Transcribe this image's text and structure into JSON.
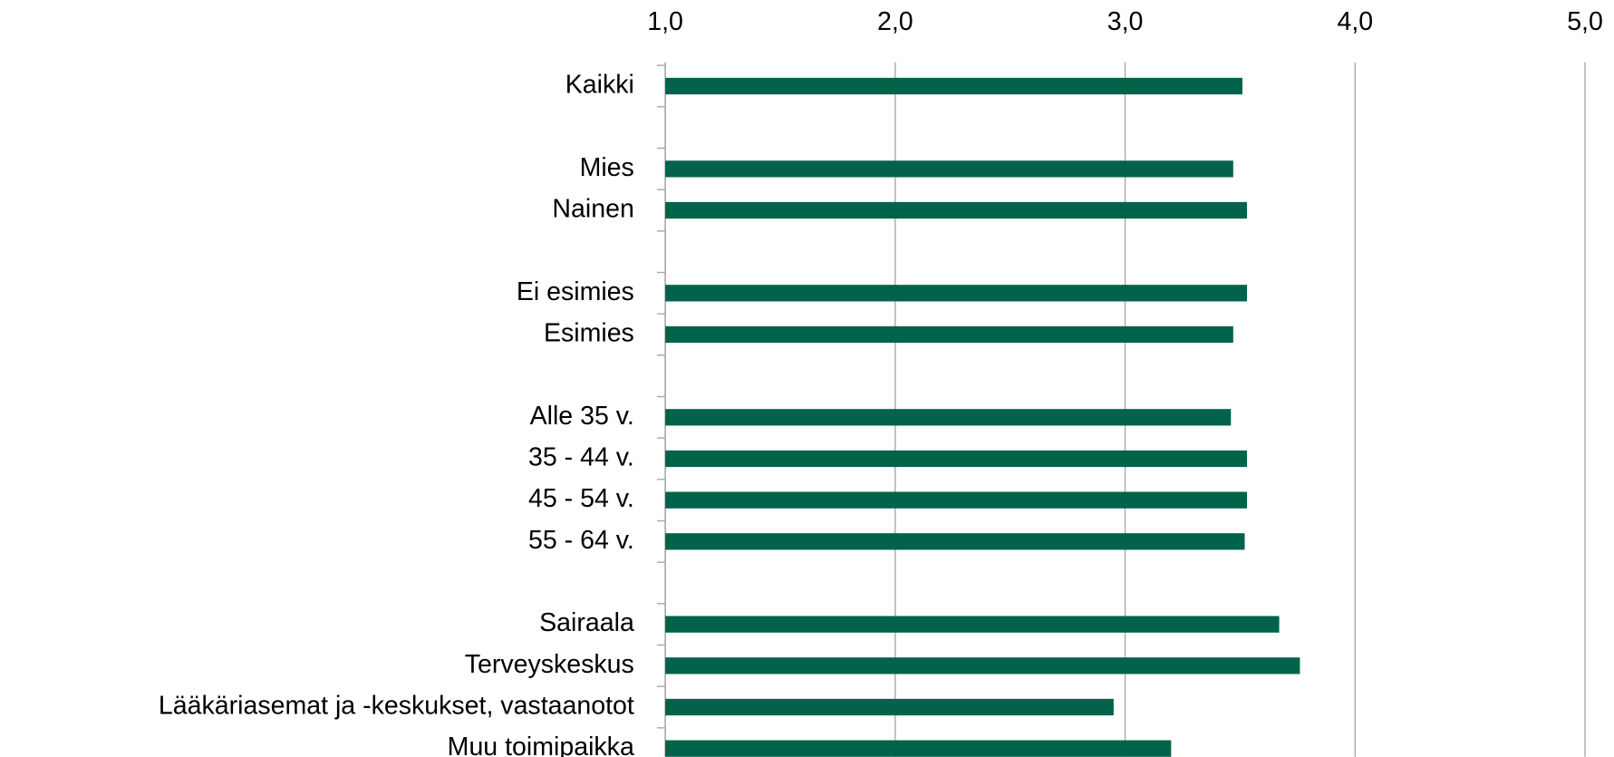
{
  "chart_data": {
    "type": "bar",
    "orientation": "horizontal",
    "categories": [
      "Kaikki",
      null,
      "Mies",
      "Nainen",
      null,
      "Ei esimies",
      "Esimies",
      null,
      "Alle 35 v.",
      "35 - 44 v.",
      "45 - 54 v.",
      "55 - 64 v.",
      null,
      "Sairaala",
      "Terveyskeskus",
      "Lääkäriasemat ja -keskukset, vastaanotot",
      "Muu toimipaikka"
    ],
    "values": [
      3.51,
      null,
      3.47,
      3.53,
      null,
      3.53,
      3.47,
      null,
      3.46,
      3.53,
      3.53,
      3.52,
      null,
      3.67,
      3.76,
      2.95,
      3.2
    ],
    "color": "#00634a",
    "xlim": [
      1,
      5
    ],
    "xticks": [
      {
        "value": 1,
        "label": "1,0"
      },
      {
        "value": 2,
        "label": "2,0"
      },
      {
        "value": 3,
        "label": "3,0"
      },
      {
        "value": 4,
        "label": "4,0"
      },
      {
        "value": 5,
        "label": "5,0"
      }
    ],
    "grid": true
  }
}
